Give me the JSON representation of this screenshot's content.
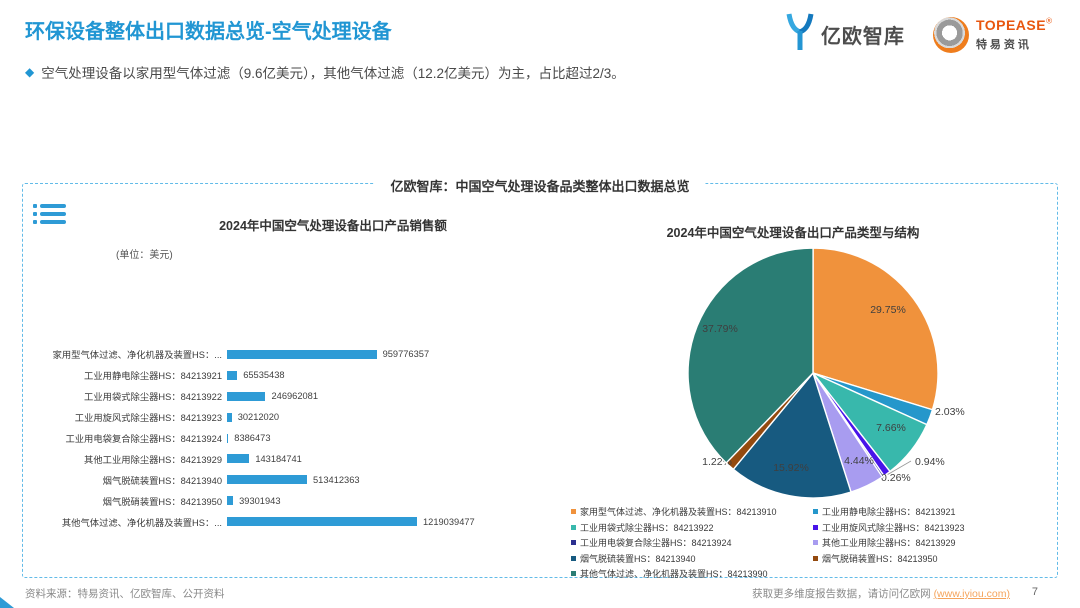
{
  "page": {
    "title": "环保设备整体出口数据总览-空气处理设备",
    "bullet": "空气处理设备以家用型气体过滤（9.6亿美元），其他气体过滤（12.2亿美元）为主，占比超过2/3。",
    "page_number": "7"
  },
  "logos": {
    "eo_name": "亿欧智库",
    "topease_name": "TOPEASE",
    "topease_reg": "®",
    "topease_sub": "特易资讯"
  },
  "panel": {
    "title": "亿欧智库：中国空气处理设备品类整体出口数据总览"
  },
  "footer": {
    "source": "资料来源：特易资讯、亿欧智库、公开资料",
    "more_text": "获取更多维度报告数据，请访问亿欧网",
    "link": "(www.iyiou.com)"
  },
  "colors": {
    "accent_blue": "#2196d3",
    "bar_blue": "#2e9bd6",
    "dashed_border": "#62bbe8",
    "link_orange": "#f5a45c"
  },
  "chart_data": [
    {
      "type": "bar",
      "orientation": "horizontal",
      "title": "2024年中国空气处理设备出口产品销售额",
      "unit_label": "(单位：美元)",
      "bar_color": "#2e9bd6",
      "categories": [
        "家用型气体过滤、净化机器及装置HS：...",
        "工业用静电除尘器HS：84213921",
        "工业用袋式除尘器HS：84213922",
        "工业用旋风式除尘器HS：84213923",
        "工业用电袋复合除尘器HS：84213924",
        "其他工业用除尘器HS：84213929",
        "烟气脱硫装置HS：84213940",
        "烟气脱硝装置HS：84213950",
        "其他气体过滤、净化机器及装置HS：..."
      ],
      "values": [
        959776357,
        65535438,
        246962081,
        30212020,
        8386473,
        143184741,
        513412363,
        39301943,
        1219039477
      ]
    },
    {
      "type": "pie",
      "title": "2024年中国空气处理设备出口产品类型与结构",
      "legend_position": "bottom",
      "slices": [
        {
          "label": "家用型气体过滤、净化机器及装置HS：84213910",
          "pct": 29.75,
          "color": "#f0923c"
        },
        {
          "label": "工业用静电除尘器HS：84213921",
          "pct": 2.03,
          "color": "#2597cb"
        },
        {
          "label": "工业用袋式除尘器HS：84213922",
          "pct": 7.66,
          "color": "#38b8ac"
        },
        {
          "label": "工业用旋风式除尘器HS：84213923",
          "pct": 0.94,
          "color": "#4814e9"
        },
        {
          "label": "工业用电袋复合除尘器HS：84213924",
          "pct": 0.26,
          "color": "#2b2f8f"
        },
        {
          "label": "其他工业用除尘器HS：84213929",
          "pct": 4.44,
          "color": "#a89cf0"
        },
        {
          "label": "烟气脱硫装置HS：84213940",
          "pct": 15.92,
          "color": "#175a80"
        },
        {
          "label": "烟气脱硝装置HS：84213950",
          "pct": 1.22,
          "color": "#944a0f"
        },
        {
          "label": "其他气体过滤、净化机器及装置HS：84213990",
          "pct": 37.79,
          "color": "#2a7d74"
        }
      ]
    }
  ]
}
